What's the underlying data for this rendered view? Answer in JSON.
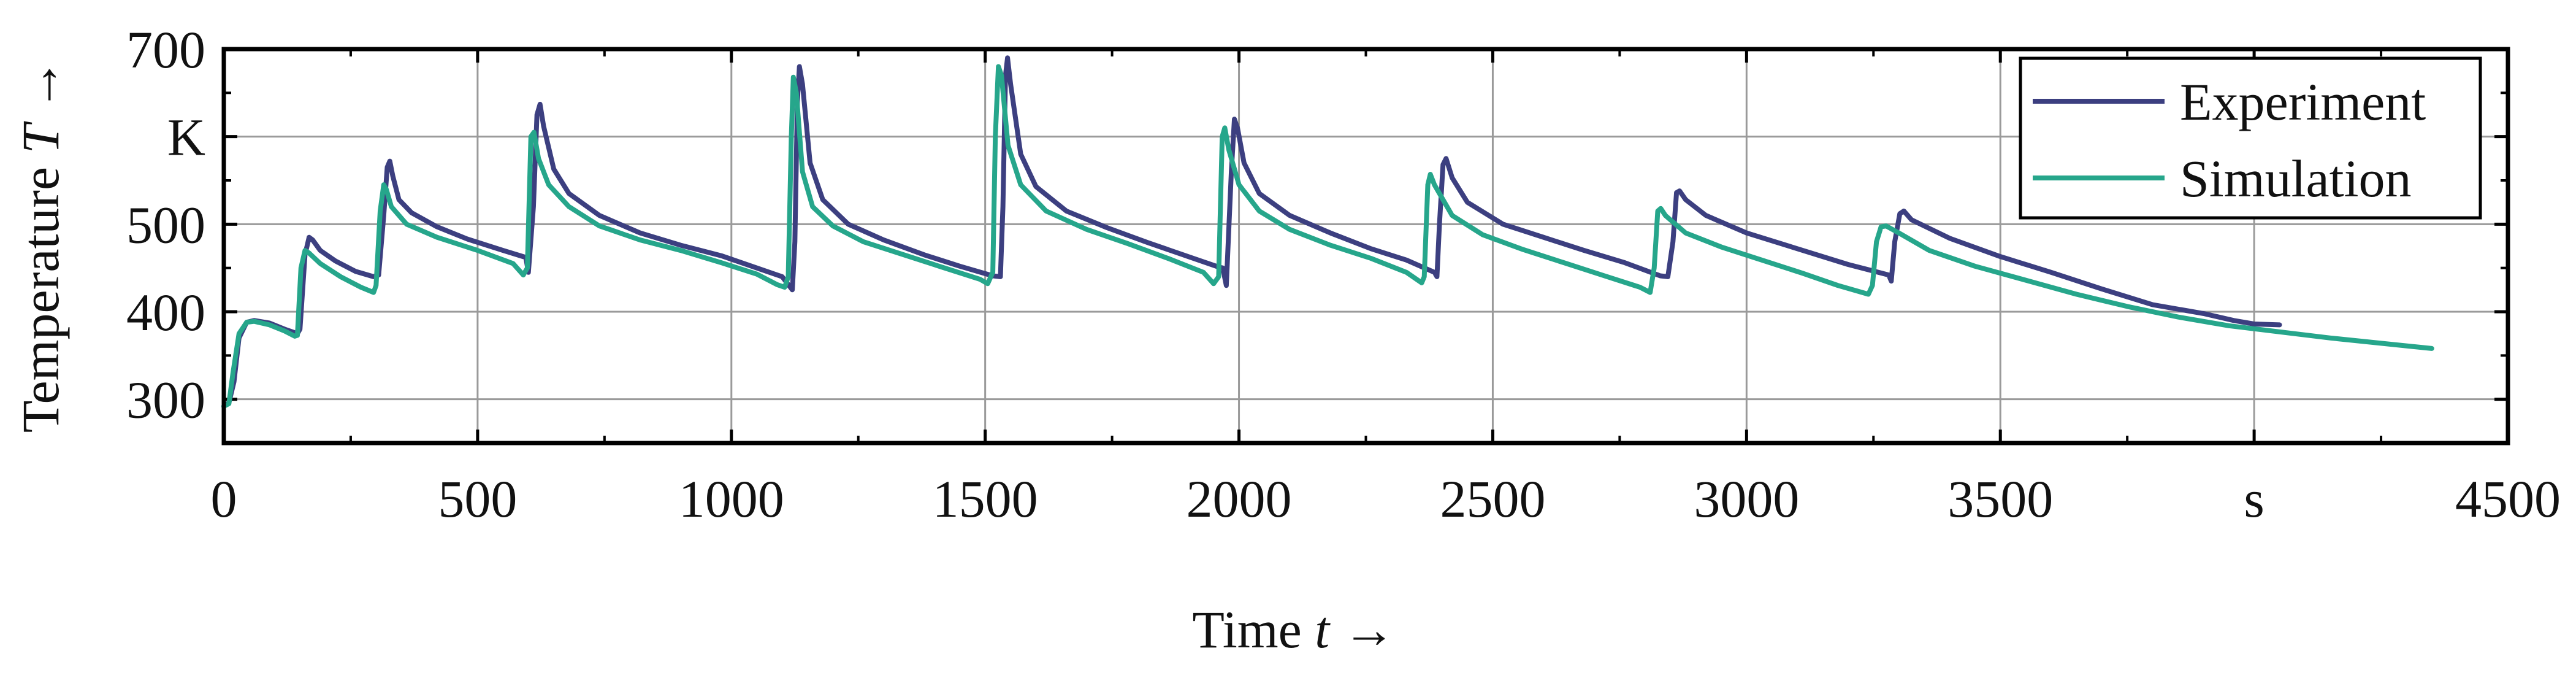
{
  "chart_data": {
    "type": "line",
    "xlabel_parts": {
      "text": "Time ",
      "symbol": "t",
      "arrow": " →"
    },
    "ylabel_parts": {
      "text": "Temperature ",
      "symbol": "T",
      "arrow": " →"
    },
    "xlim": [
      0,
      4500
    ],
    "ylim": [
      250,
      700
    ],
    "x_ticks": [
      {
        "value": 0,
        "label": "0"
      },
      {
        "value": 500,
        "label": "500"
      },
      {
        "value": 1000,
        "label": "1000"
      },
      {
        "value": 1500,
        "label": "1500"
      },
      {
        "value": 2000,
        "label": "2000"
      },
      {
        "value": 2500,
        "label": "2500"
      },
      {
        "value": 3000,
        "label": "3000"
      },
      {
        "value": 3500,
        "label": "3500"
      },
      {
        "value": 4000,
        "label": "s"
      },
      {
        "value": 4500,
        "label": "4500"
      }
    ],
    "y_ticks": [
      {
        "value": 300,
        "label": "300"
      },
      {
        "value": 400,
        "label": "400"
      },
      {
        "value": 500,
        "label": "500"
      },
      {
        "value": 600,
        "label": "K"
      },
      {
        "value": 700,
        "label": "700"
      }
    ],
    "grid": true,
    "legend_position": "top-right",
    "series": [
      {
        "name": "Experiment",
        "color": "#3c3f80",
        "points": [
          [
            0,
            292
          ],
          [
            10,
            296
          ],
          [
            20,
            320
          ],
          [
            30,
            370
          ],
          [
            45,
            388
          ],
          [
            60,
            390
          ],
          [
            90,
            387
          ],
          [
            120,
            380
          ],
          [
            145,
            375
          ],
          [
            150,
            380
          ],
          [
            160,
            465
          ],
          [
            168,
            485
          ],
          [
            175,
            482
          ],
          [
            190,
            470
          ],
          [
            220,
            458
          ],
          [
            260,
            446
          ],
          [
            295,
            440
          ],
          [
            305,
            442
          ],
          [
            315,
            510
          ],
          [
            322,
            565
          ],
          [
            327,
            572
          ],
          [
            333,
            555
          ],
          [
            345,
            528
          ],
          [
            370,
            513
          ],
          [
            420,
            497
          ],
          [
            480,
            483
          ],
          [
            550,
            470
          ],
          [
            595,
            462
          ],
          [
            600,
            445
          ],
          [
            610,
            520
          ],
          [
            617,
            625
          ],
          [
            623,
            637
          ],
          [
            630,
            612
          ],
          [
            650,
            563
          ],
          [
            680,
            535
          ],
          [
            740,
            510
          ],
          [
            820,
            490
          ],
          [
            900,
            476
          ],
          [
            980,
            464
          ],
          [
            1050,
            450
          ],
          [
            1100,
            440
          ],
          [
            1120,
            425
          ],
          [
            1125,
            480
          ],
          [
            1130,
            640
          ],
          [
            1134,
            680
          ],
          [
            1140,
            660
          ],
          [
            1155,
            570
          ],
          [
            1180,
            528
          ],
          [
            1230,
            500
          ],
          [
            1300,
            482
          ],
          [
            1380,
            465
          ],
          [
            1450,
            452
          ],
          [
            1515,
            441
          ],
          [
            1530,
            440
          ],
          [
            1535,
            520
          ],
          [
            1540,
            670
          ],
          [
            1544,
            690
          ],
          [
            1550,
            660
          ],
          [
            1570,
            580
          ],
          [
            1600,
            543
          ],
          [
            1660,
            515
          ],
          [
            1740,
            496
          ],
          [
            1820,
            479
          ],
          [
            1900,
            463
          ],
          [
            1960,
            451
          ],
          [
            1968,
            450
          ],
          [
            1975,
            430
          ],
          [
            1985,
            560
          ],
          [
            1991,
            620
          ],
          [
            1997,
            610
          ],
          [
            2010,
            570
          ],
          [
            2040,
            535
          ],
          [
            2100,
            510
          ],
          [
            2180,
            490
          ],
          [
            2260,
            472
          ],
          [
            2330,
            459
          ],
          [
            2385,
            445
          ],
          [
            2390,
            440
          ],
          [
            2395,
            500
          ],
          [
            2402,
            568
          ],
          [
            2408,
            575
          ],
          [
            2420,
            553
          ],
          [
            2450,
            525
          ],
          [
            2520,
            500
          ],
          [
            2600,
            485
          ],
          [
            2680,
            470
          ],
          [
            2760,
            456
          ],
          [
            2830,
            441
          ],
          [
            2845,
            440
          ],
          [
            2855,
            480
          ],
          [
            2862,
            536
          ],
          [
            2868,
            538
          ],
          [
            2880,
            528
          ],
          [
            2920,
            510
          ],
          [
            3000,
            490
          ],
          [
            3100,
            472
          ],
          [
            3200,
            454
          ],
          [
            3280,
            442
          ],
          [
            3285,
            435
          ],
          [
            3292,
            480
          ],
          [
            3302,
            512
          ],
          [
            3310,
            515
          ],
          [
            3325,
            505
          ],
          [
            3400,
            484
          ],
          [
            3500,
            463
          ],
          [
            3600,
            445
          ],
          [
            3700,
            426
          ],
          [
            3800,
            408
          ],
          [
            3900,
            398
          ],
          [
            3960,
            390
          ],
          [
            4000,
            386
          ],
          [
            4050,
            385
          ]
        ]
      },
      {
        "name": "Simulation",
        "color": "#26a68b",
        "points": [
          [
            0,
            292
          ],
          [
            10,
            295
          ],
          [
            18,
            330
          ],
          [
            30,
            375
          ],
          [
            45,
            388
          ],
          [
            60,
            389
          ],
          [
            90,
            385
          ],
          [
            120,
            378
          ],
          [
            140,
            372
          ],
          [
            145,
            373
          ],
          [
            152,
            450
          ],
          [
            160,
            470
          ],
          [
            168,
            467
          ],
          [
            190,
            455
          ],
          [
            230,
            440
          ],
          [
            270,
            428
          ],
          [
            295,
            422
          ],
          [
            300,
            430
          ],
          [
            308,
            515
          ],
          [
            315,
            545
          ],
          [
            320,
            540
          ],
          [
            330,
            520
          ],
          [
            360,
            500
          ],
          [
            420,
            485
          ],
          [
            500,
            470
          ],
          [
            570,
            455
          ],
          [
            590,
            442
          ],
          [
            598,
            450
          ],
          [
            605,
            600
          ],
          [
            611,
            605
          ],
          [
            620,
            575
          ],
          [
            640,
            545
          ],
          [
            680,
            520
          ],
          [
            740,
            498
          ],
          [
            820,
            482
          ],
          [
            900,
            470
          ],
          [
            980,
            456
          ],
          [
            1050,
            443
          ],
          [
            1090,
            431
          ],
          [
            1105,
            428
          ],
          [
            1112,
            440
          ],
          [
            1118,
            600
          ],
          [
            1122,
            668
          ],
          [
            1128,
            650
          ],
          [
            1140,
            560
          ],
          [
            1160,
            520
          ],
          [
            1200,
            498
          ],
          [
            1260,
            480
          ],
          [
            1340,
            465
          ],
          [
            1420,
            450
          ],
          [
            1490,
            437
          ],
          [
            1505,
            432
          ],
          [
            1515,
            445
          ],
          [
            1520,
            600
          ],
          [
            1526,
            680
          ],
          [
            1532,
            670
          ],
          [
            1545,
            590
          ],
          [
            1570,
            545
          ],
          [
            1620,
            515
          ],
          [
            1700,
            494
          ],
          [
            1780,
            478
          ],
          [
            1860,
            461
          ],
          [
            1930,
            445
          ],
          [
            1950,
            432
          ],
          [
            1960,
            440
          ],
          [
            1967,
            600
          ],
          [
            1972,
            610
          ],
          [
            1980,
            585
          ],
          [
            2000,
            545
          ],
          [
            2040,
            515
          ],
          [
            2100,
            494
          ],
          [
            2180,
            476
          ],
          [
            2260,
            461
          ],
          [
            2330,
            445
          ],
          [
            2360,
            433
          ],
          [
            2365,
            440
          ],
          [
            2372,
            545
          ],
          [
            2377,
            557
          ],
          [
            2385,
            545
          ],
          [
            2420,
            510
          ],
          [
            2480,
            488
          ],
          [
            2560,
            471
          ],
          [
            2640,
            456
          ],
          [
            2720,
            441
          ],
          [
            2790,
            428
          ],
          [
            2810,
            422
          ],
          [
            2818,
            450
          ],
          [
            2825,
            515
          ],
          [
            2831,
            518
          ],
          [
            2840,
            510
          ],
          [
            2880,
            490
          ],
          [
            2950,
            474
          ],
          [
            3030,
            459
          ],
          [
            3110,
            444
          ],
          [
            3180,
            430
          ],
          [
            3240,
            420
          ],
          [
            3248,
            430
          ],
          [
            3256,
            480
          ],
          [
            3265,
            497
          ],
          [
            3275,
            498
          ],
          [
            3300,
            490
          ],
          [
            3360,
            470
          ],
          [
            3450,
            452
          ],
          [
            3550,
            436
          ],
          [
            3650,
            420
          ],
          [
            3750,
            406
          ],
          [
            3850,
            394
          ],
          [
            3950,
            384
          ],
          [
            4050,
            377
          ],
          [
            4150,
            370
          ],
          [
            4250,
            364
          ],
          [
            4350,
            358
          ]
        ]
      }
    ]
  }
}
